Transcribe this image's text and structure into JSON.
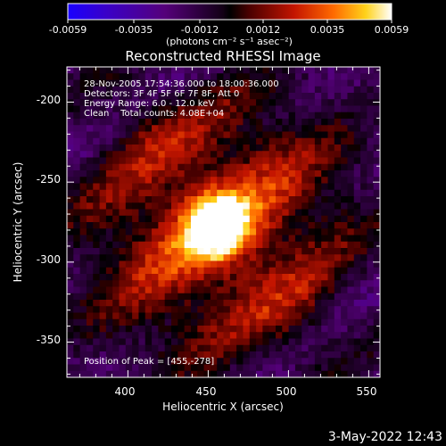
{
  "colorbar": {
    "ticks": [
      "-0.0059",
      "-0.0035",
      "-0.0012",
      "0.0012",
      "0.0035",
      "0.0059"
    ],
    "unit": "(photons cm⁻² s⁻¹ asec⁻²)",
    "range": [
      -0.0059,
      0.0059
    ]
  },
  "chart_data": {
    "type": "heatmap",
    "title": "Reconstructed RHESSI Image",
    "xlabel": "Heliocentric X (arcsec)",
    "ylabel": "Heliocentric Y (arcsec)",
    "xlim": [
      362,
      557
    ],
    "ylim": [
      -372,
      -178
    ],
    "x_ticks": [
      400,
      450,
      500,
      550
    ],
    "y_ticks": [
      -200,
      -250,
      -300,
      -350
    ],
    "info_lines": [
      "28-Nov-2005 17:54:36.000 to 18:00:36.000",
      "Detectors: 3F 4F 5F 6F 7F 8F, Att 0",
      "Energy Range: 6.0 - 12.0 keV",
      "Clean    Total counts: 4.08E+04"
    ],
    "peak_label": "Position of Peak = [455,-278]",
    "peak": [
      455,
      -278
    ],
    "colormap": "rhessi-blue-white-red-yellow",
    "grid": false
  },
  "footer": {
    "timestamp": "3-May-2022 12:43"
  }
}
